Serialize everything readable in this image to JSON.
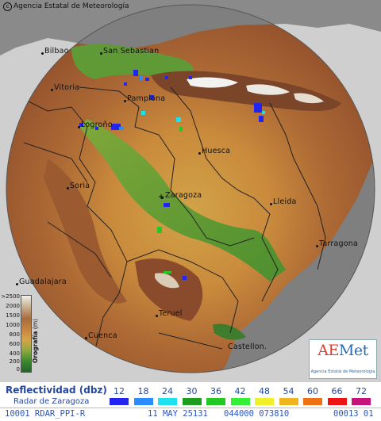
{
  "credit": "Agencia Estatal de Meteorología",
  "cities": [
    {
      "name": "Bilbao"
    },
    {
      "name": "San Sebastian"
    },
    {
      "name": "Vitoria"
    },
    {
      "name": "Pamplona"
    },
    {
      "name": "Logroño"
    },
    {
      "name": "Huesca"
    },
    {
      "name": "Soria"
    },
    {
      "name": "Zaragoza"
    },
    {
      "name": "Lleida"
    },
    {
      "name": "Tarragona"
    },
    {
      "name": "Guadalajara"
    },
    {
      "name": "Teruel"
    },
    {
      "name": "Cuenca"
    },
    {
      "name": "Castellon."
    }
  ],
  "elevation_legend": {
    "title": "Orografía",
    "unit": "(m)",
    "ticks": [
      ">2500",
      "2000",
      "1500",
      "1000",
      "800",
      "600",
      "400",
      "200",
      "0"
    ]
  },
  "logo": {
    "ae_part": "AE",
    "met_part": "Met",
    "subtitle": "Agencia Estatal de Meteorología"
  },
  "reflectivity_legend": {
    "title": "Reflectividad (dbz)",
    "subtitle": "Radar de Zaragoza",
    "levels": [
      {
        "value": "12",
        "color": "#2424f0"
      },
      {
        "value": "18",
        "color": "#2a8cff"
      },
      {
        "value": "24",
        "color": "#1ee0ee"
      },
      {
        "value": "30",
        "color": "#1e9e1e"
      },
      {
        "value": "36",
        "color": "#24c824"
      },
      {
        "value": "42",
        "color": "#34f034"
      },
      {
        "value": "48",
        "color": "#f0f028"
      },
      {
        "value": "54",
        "color": "#f0b41e"
      },
      {
        "value": "60",
        "color": "#f07014"
      },
      {
        "value": "66",
        "color": "#ee1414"
      },
      {
        "value": "72",
        "color": "#c8147a"
      }
    ]
  },
  "status": {
    "product": "10001 RDAR_PPI-R",
    "date": "11 MAY 25131",
    "codes": "044000 073810",
    "tail": "00013 01"
  }
}
